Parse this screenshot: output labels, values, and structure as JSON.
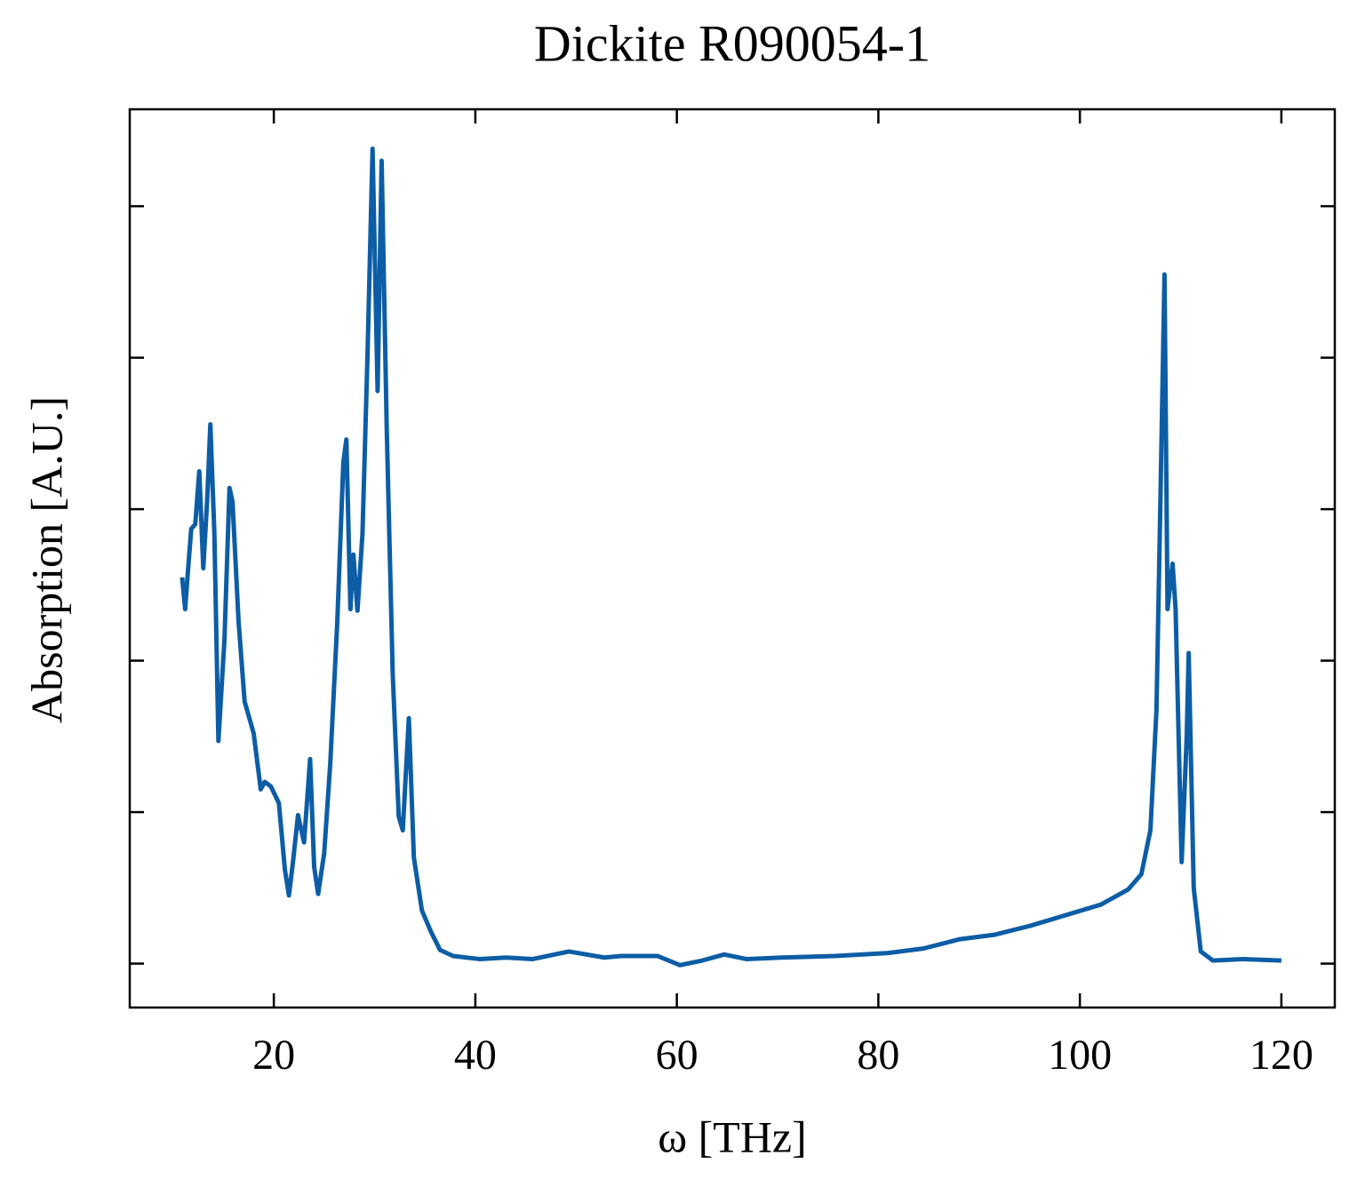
{
  "chart_data": {
    "type": "line",
    "title": "Dickite R090054-1",
    "x_label": "ω [THz]",
    "y_label": "Absorption [A.U.]",
    "xlim": [
      5.7,
      125.3
    ],
    "xticks": [
      20,
      40,
      60,
      80,
      100,
      120
    ],
    "ylim": [
      -0.29,
      5.64
    ],
    "yticks": [
      0,
      1,
      2,
      3,
      4,
      5
    ],
    "series": [
      {
        "name": "Dickite R090054-1",
        "color": "#0c5da5",
        "x": [
          10.9,
          11.2,
          11.5,
          11.8,
          12.2,
          12.6,
          13.0,
          13.4,
          13.7,
          14.1,
          14.5,
          15.1,
          15.6,
          15.9,
          16.5,
          17.1,
          18.0,
          18.7,
          19.1,
          19.7,
          20.5,
          21.1,
          21.5,
          21.9,
          22.4,
          23.0,
          23.6,
          24.0,
          24.4,
          25.0,
          25.6,
          26.3,
          26.9,
          27.2,
          27.6,
          27.9,
          28.3,
          28.8,
          29.3,
          29.8,
          30.3,
          30.7,
          31.2,
          31.8,
          32.4,
          32.8,
          33.4,
          33.9,
          34.7,
          35.6,
          36.5,
          37.8,
          40.4,
          43.1,
          45.7,
          49.3,
          52.8,
          54.5,
          58.1,
          60.3,
          62.5,
          64.7,
          66.9,
          70.4,
          75.7,
          81.0,
          84.5,
          88.0,
          91.5,
          95.1,
          98.6,
          102.1,
          104.8,
          106.1,
          107.0,
          107.6,
          108.0,
          108.4,
          108.7,
          109.2,
          109.5,
          110.1,
          110.6,
          110.8,
          111.3,
          112.0,
          113.2,
          116.2,
          120.0
        ],
        "values": [
          2.55,
          2.34,
          2.61,
          2.87,
          2.9,
          3.25,
          2.61,
          3.08,
          3.56,
          2.84,
          1.47,
          2.14,
          3.14,
          3.05,
          2.26,
          1.73,
          1.52,
          1.15,
          1.2,
          1.17,
          1.06,
          0.62,
          0.45,
          0.67,
          0.98,
          0.8,
          1.35,
          0.64,
          0.46,
          0.73,
          1.32,
          2.26,
          3.31,
          3.46,
          2.34,
          2.7,
          2.33,
          2.84,
          4.02,
          5.38,
          3.78,
          5.3,
          3.55,
          1.91,
          0.97,
          0.88,
          1.62,
          0.7,
          0.35,
          0.21,
          0.09,
          0.05,
          0.03,
          0.04,
          0.03,
          0.08,
          0.04,
          0.05,
          0.05,
          -0.01,
          0.02,
          0.06,
          0.03,
          0.04,
          0.05,
          0.07,
          0.1,
          0.16,
          0.19,
          0.25,
          0.32,
          0.39,
          0.49,
          0.59,
          0.88,
          1.67,
          3.08,
          4.55,
          2.34,
          2.64,
          2.34,
          0.67,
          1.49,
          2.05,
          0.5,
          0.08,
          0.02,
          0.03,
          0.02
        ]
      }
    ]
  }
}
